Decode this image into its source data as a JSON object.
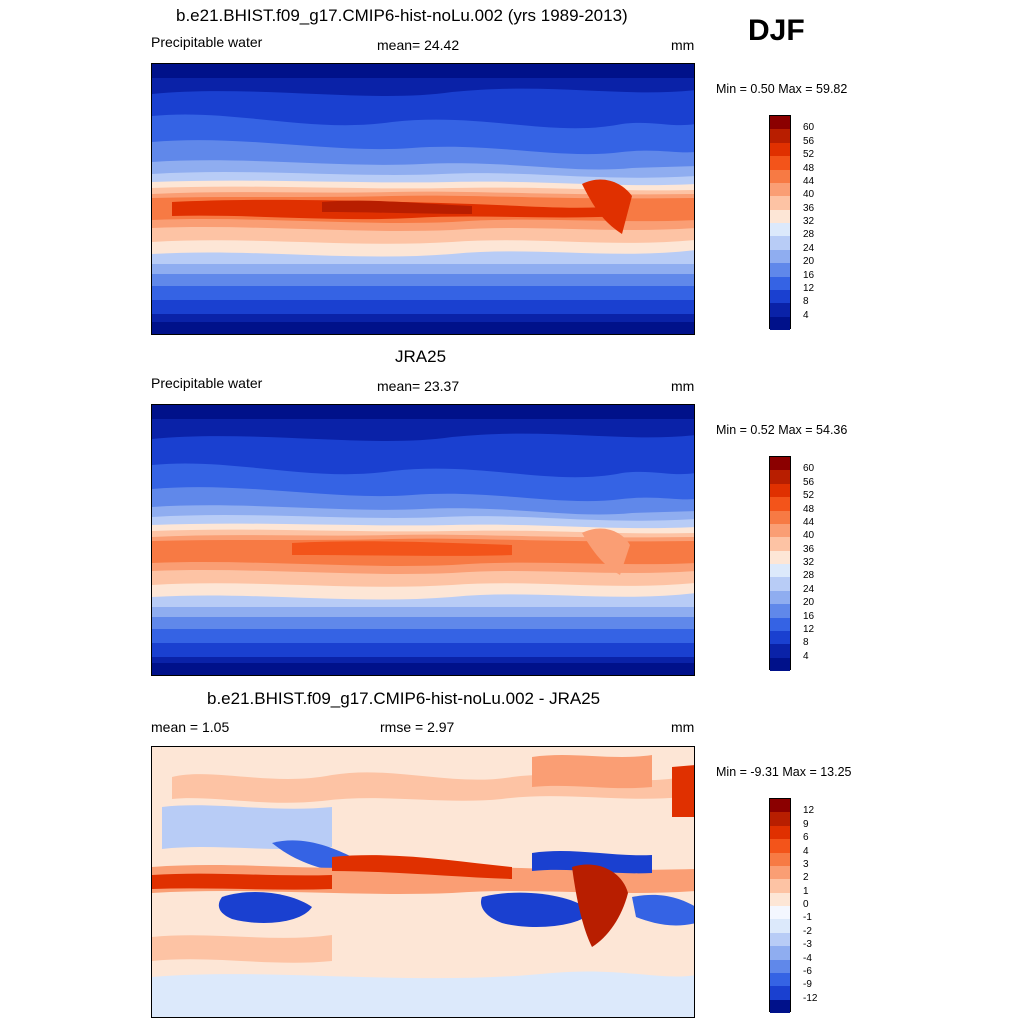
{
  "season": "DJF",
  "panels": [
    {
      "title": "b.e21.BHIST.f09_g17.CMIP6-hist-noLu.002 (yrs 1989-2013)",
      "left_label": "Precipitable water",
      "center_label": "mean=  24.42",
      "units": "mm",
      "minmax": "Min =   0.50 Max =  59.82",
      "colorbar_labels": [
        "60",
        "56",
        "52",
        "48",
        "44",
        "40",
        "36",
        "32",
        "28",
        "24",
        "20",
        "16",
        "12",
        "8",
        "4"
      ]
    },
    {
      "title": "JRA25",
      "left_label": "Precipitable water",
      "center_label": "mean=  23.37",
      "units": "mm",
      "minmax": "Min =   0.52 Max =  54.36",
      "colorbar_labels": [
        "60",
        "56",
        "52",
        "48",
        "44",
        "40",
        "36",
        "32",
        "28",
        "24",
        "20",
        "16",
        "12",
        "8",
        "4"
      ]
    },
    {
      "title": "b.e21.BHIST.f09_g17.CMIP6-hist-noLu.002 - JRA25",
      "left_label": "mean =   1.05",
      "center_label": "rmse =   2.97",
      "units": "mm",
      "minmax": "Min =  -9.31 Max =  13.25",
      "colorbar_labels": [
        "12",
        "9",
        "6",
        "4",
        "3",
        "2",
        "1",
        "0",
        "-1",
        "-2",
        "-3",
        "-4",
        "-6",
        "-9",
        "-12"
      ]
    }
  ],
  "colors": {
    "field_scale": [
      "#8b0000",
      "#b81e00",
      "#e03000",
      "#f3541a",
      "#f77a44",
      "#fa9e74",
      "#fdc3a4",
      "#fde6d6",
      "#dce9fb",
      "#b8ccf6",
      "#8fadf0",
      "#6088ea",
      "#3563e4",
      "#1a40d0",
      "#0a22a8",
      "#00118a"
    ],
    "diff_scale": [
      "#8b0000",
      "#b81e00",
      "#e03000",
      "#f3541a",
      "#f77a44",
      "#fa9e74",
      "#fdc3a4",
      "#fde6d6",
      "#f4f7ff",
      "#dce9fb",
      "#b8ccf6",
      "#8fadf0",
      "#6088ea",
      "#3563e4",
      "#1a40d0",
      "#00118a"
    ]
  }
}
